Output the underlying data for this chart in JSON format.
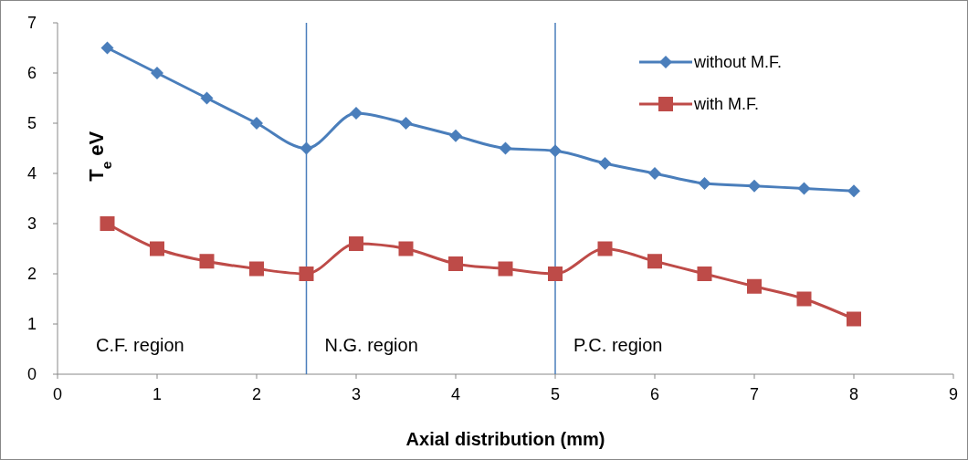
{
  "chart_data": {
    "type": "line",
    "xlabel": "Axial distribution (mm)",
    "ylabel": "T$_{e}$ eV",
    "x": [
      0.5,
      1,
      1.5,
      2,
      2.5,
      3,
      3.5,
      4,
      4.5,
      5,
      5.5,
      6,
      6.5,
      7,
      7.5,
      8
    ],
    "series": [
      {
        "name": "without M.F.",
        "color": "#4a7ebb",
        "marker": "diamond",
        "values": [
          6.5,
          6.0,
          5.5,
          5.0,
          4.5,
          5.2,
          5.0,
          4.75,
          4.5,
          4.45,
          4.2,
          4.0,
          3.8,
          3.75,
          3.7,
          3.65
        ]
      },
      {
        "name": "with M.F.",
        "color": "#be4b48",
        "marker": "square",
        "values": [
          3.0,
          2.5,
          2.25,
          2.1,
          2.0,
          2.6,
          2.5,
          2.2,
          2.1,
          2.0,
          2.5,
          2.25,
          2.0,
          1.75,
          1.5,
          1.1
        ]
      }
    ],
    "xlim": [
      0,
      9
    ],
    "xticks": [
      0,
      1,
      2,
      3,
      4,
      5,
      6,
      7,
      8,
      9
    ],
    "ylim": [
      0,
      7
    ],
    "yticks": [
      0,
      1,
      2,
      3,
      4,
      5,
      6,
      7
    ],
    "ref_lines": [
      {
        "axis": "x",
        "value": 2.5,
        "color": "#4a7ebb"
      },
      {
        "axis": "x",
        "value": 5,
        "color": "#4a7ebb"
      }
    ],
    "annotations": [
      "C.F. region",
      "N.G. region",
      "P.C. region"
    ],
    "legend": "top right",
    "grid": false
  }
}
